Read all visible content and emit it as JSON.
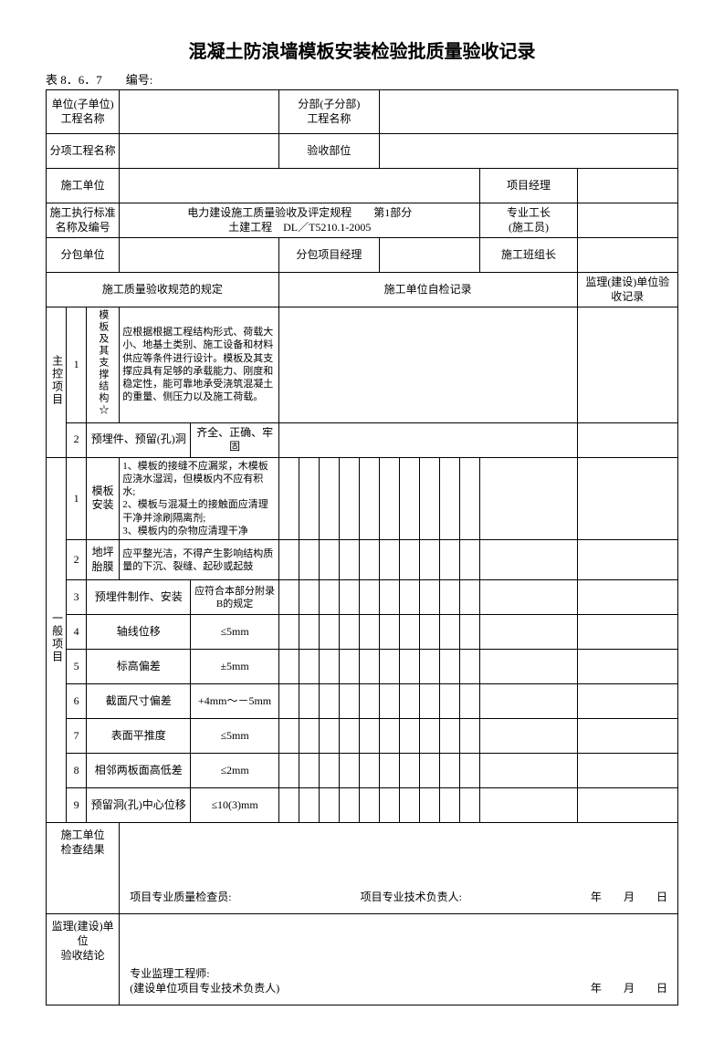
{
  "title": "混凝土防浪墙模板安装检验批质量验收记录",
  "table_no": "表 8．6．7",
  "serial_label": "编号:",
  "header": {
    "unit_proj": "单位(子单位)\n工程名称",
    "sub_proj": "分部(子分部)\n工程名称",
    "item_proj": "分项工程名称",
    "accept_part": "验收部位",
    "constr_unit": "施工单位",
    "pm": "项目经理",
    "std_name": "施工执行标准\n名称及编号",
    "std_text": "电力建设施工质量验收及评定规程　　第1部分\n土建工程　DL／T5210.1-2005",
    "foreman": "专业工长\n(施工员)",
    "subcon": "分包单位",
    "subcon_pm": "分包项目经理",
    "team_leader": "施工班组长",
    "col_spec": "施工质量验收规范的规定",
    "col_self": "施工单位自检记录",
    "col_sup": "监理(建设)单位验收记录"
  },
  "groups": {
    "main": "主控项目",
    "general": "一般项目"
  },
  "main_items": [
    {
      "n": "1",
      "name": "模板及其支撑结构☆",
      "req": "应根据根据工程结构形式、荷载大小、地基土类别、施工设备和材料供应等条件进行设计。模板及其支撑应具有足够的承载能力、刚度和稳定性，能可靠地承受浇筑混凝土的重量、侧压力以及施工荷载。"
    },
    {
      "n": "2",
      "name": "预埋件、预留(孔)洞",
      "req": "齐全、正确、牢固"
    }
  ],
  "general_items": [
    {
      "n": "1",
      "name": "模板安装",
      "req": "1、模板的接缝不应漏浆，木模板应浇水湿润，但模板内不应有积水;\n2、模板与混凝土的接触面应清理干净并涂刷隔离剂;\n3、模板内的杂物应清理干净"
    },
    {
      "n": "2",
      "name": "地坪胎膜",
      "req": "应平整光洁，不得产生影响结构质量的下沉、裂缝、起砂或起鼓"
    },
    {
      "n": "3",
      "name": "预埋件制作、安装",
      "req": "应符合本部分附录B的规定"
    },
    {
      "n": "4",
      "name": "轴线位移",
      "req": "≤5mm"
    },
    {
      "n": "5",
      "name": "标高偏差",
      "req": "±5mm"
    },
    {
      "n": "6",
      "name": "截面尺寸偏差",
      "req": "+4mm～－5mm"
    },
    {
      "n": "7",
      "name": "表面平推度",
      "req": "≤5mm"
    },
    {
      "n": "8",
      "name": "相邻两板面高低差",
      "req": "≤2mm"
    },
    {
      "n": "9",
      "name": "预留洞(孔)中心位移",
      "req": "≤10(3)mm"
    }
  ],
  "footer": {
    "constr_result": "施工单位\n检查结果",
    "qc": "项目专业质量检查员:",
    "tech": "项目专业技术负责人:",
    "sup_result": "监理(建设)单位\n验收结论",
    "sup_eng": "专业监理工程师:\n(建设单位项目专业技术负责人)",
    "y": "年",
    "m": "月",
    "d": "日"
  }
}
